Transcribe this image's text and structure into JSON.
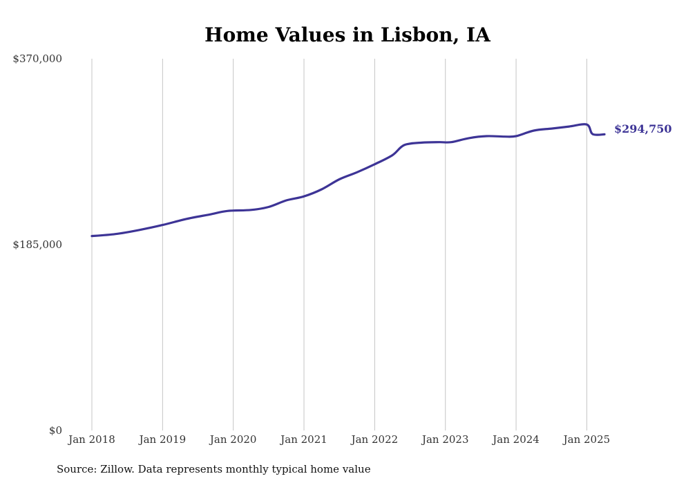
{
  "chart_data": {
    "type": "line",
    "title": "Home Values in Lisbon, IA",
    "xlabel": "",
    "ylabel": "",
    "x_ticks": [
      "Jan 2018",
      "Jan 2019",
      "Jan 2020",
      "Jan 2021",
      "Jan 2022",
      "Jan 2023",
      "Jan 2024",
      "Jan 2025"
    ],
    "y_ticks": [
      "$0",
      "$185,000",
      "$370,000"
    ],
    "y_tick_values": [
      0,
      185000,
      370000
    ],
    "ylim": [
      0,
      370000
    ],
    "xlim": [
      "2018-01",
      "2025-04"
    ],
    "grid": "vertical",
    "line_color": "#3d3496",
    "series": [
      {
        "x": [
          "2018-01",
          "2018-05",
          "2018-09",
          "2019-01",
          "2019-05",
          "2019-09",
          "2019-12",
          "2020-04",
          "2020-07",
          "2020-10",
          "2021-01",
          "2021-04",
          "2021-07",
          "2021-10",
          "2022-01",
          "2022-04",
          "2022-06",
          "2022-09",
          "2022-12",
          "2023-02",
          "2023-05",
          "2023-08",
          "2023-11",
          "2024-01",
          "2024-04",
          "2024-07",
          "2024-10",
          "2025-01",
          "2025-02",
          "2025-04"
        ],
        "y": [
          193500,
          195500,
          199500,
          204500,
          210500,
          215000,
          218500,
          219500,
          222500,
          229000,
          233000,
          240000,
          250000,
          257000,
          265000,
          274000,
          284000,
          286500,
          287000,
          287000,
          291000,
          293000,
          292500,
          293000,
          298500,
          300500,
          302500,
          304500,
          295000,
          294750
        ]
      }
    ],
    "end_label": "$294,750",
    "source": "Source: Zillow. Data represents monthly typical home value"
  }
}
